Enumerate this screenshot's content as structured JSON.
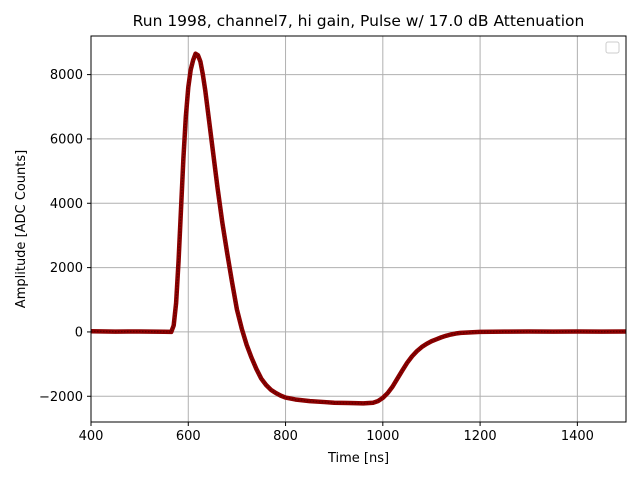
{
  "chart_data": {
    "type": "line",
    "title": "Run 1998, channel7, hi gain, Pulse w/ 17.0 dB Attenuation",
    "xlabel": "Time [ns]",
    "ylabel": "Amplitude [ADC Counts]",
    "xlim": [
      400,
      1500
    ],
    "ylim": [
      -2800,
      9200
    ],
    "xticks": [
      400,
      600,
      800,
      1000,
      1200,
      1400
    ],
    "yticks": [
      -2000,
      0,
      2000,
      4000,
      6000,
      8000
    ],
    "xtick_labels": [
      "400",
      "600",
      "800",
      "1000",
      "1200",
      "1400"
    ],
    "ytick_labels": [
      "−2000",
      "0",
      "2000",
      "4000",
      "6000",
      "8000"
    ],
    "grid": true,
    "legend": "top-right, empty",
    "series": [
      {
        "color": "#8b0000",
        "points": [
          [
            400,
            20
          ],
          [
            450,
            10
          ],
          [
            500,
            15
          ],
          [
            550,
            5
          ],
          [
            565,
            0
          ],
          [
            570,
            200
          ],
          [
            575,
            900
          ],
          [
            580,
            2200
          ],
          [
            585,
            3800
          ],
          [
            590,
            5400
          ],
          [
            595,
            6700
          ],
          [
            600,
            7600
          ],
          [
            605,
            8150
          ],
          [
            610,
            8450
          ],
          [
            615,
            8650
          ],
          [
            620,
            8600
          ],
          [
            625,
            8400
          ],
          [
            630,
            8000
          ],
          [
            635,
            7500
          ],
          [
            640,
            6900
          ],
          [
            650,
            5700
          ],
          [
            660,
            4500
          ],
          [
            670,
            3400
          ],
          [
            680,
            2450
          ],
          [
            690,
            1550
          ],
          [
            700,
            700
          ],
          [
            710,
            100
          ],
          [
            720,
            -400
          ],
          [
            730,
            -800
          ],
          [
            740,
            -1150
          ],
          [
            750,
            -1450
          ],
          [
            760,
            -1650
          ],
          [
            770,
            -1800
          ],
          [
            780,
            -1900
          ],
          [
            790,
            -1980
          ],
          [
            800,
            -2040
          ],
          [
            820,
            -2100
          ],
          [
            850,
            -2150
          ],
          [
            880,
            -2180
          ],
          [
            900,
            -2200
          ],
          [
            930,
            -2210
          ],
          [
            960,
            -2220
          ],
          [
            980,
            -2200
          ],
          [
            990,
            -2150
          ],
          [
            1000,
            -2050
          ],
          [
            1010,
            -1900
          ],
          [
            1020,
            -1700
          ],
          [
            1030,
            -1450
          ],
          [
            1040,
            -1200
          ],
          [
            1050,
            -960
          ],
          [
            1060,
            -760
          ],
          [
            1070,
            -600
          ],
          [
            1080,
            -470
          ],
          [
            1090,
            -370
          ],
          [
            1100,
            -290
          ],
          [
            1110,
            -230
          ],
          [
            1120,
            -170
          ],
          [
            1130,
            -120
          ],
          [
            1140,
            -80
          ],
          [
            1150,
            -50
          ],
          [
            1160,
            -30
          ],
          [
            1180,
            -15
          ],
          [
            1200,
            0
          ],
          [
            1250,
            10
          ],
          [
            1300,
            15
          ],
          [
            1350,
            10
          ],
          [
            1400,
            15
          ],
          [
            1450,
            10
          ],
          [
            1500,
            15
          ]
        ]
      }
    ]
  },
  "colors": {
    "line": "#8b0000",
    "grid": "#b0b0b0",
    "axes": "#000000"
  }
}
